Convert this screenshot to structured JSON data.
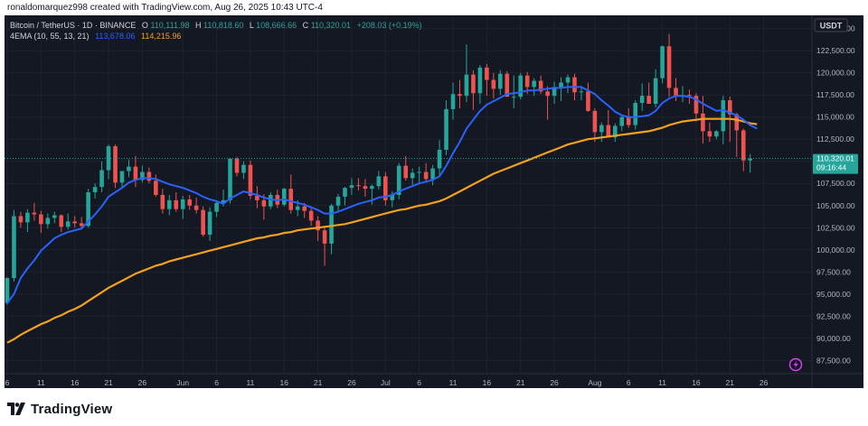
{
  "header": {
    "credit": "ronaldomarquez998 created with TradingView.com, Aug 26, 2025 10:43 UTC-4"
  },
  "legend": {
    "symbol": "Bitcoin / TetherUS · 1D · BINANCE",
    "o_label": "O",
    "o": "110,111.98",
    "h_label": "H",
    "h": "110,818.60",
    "l_label": "L",
    "l": "108,666.66",
    "c_label": "C",
    "c": "110,320.01",
    "change": "+208.03 (+0.19%)",
    "ema_label": "4EMA (10, 55, 13, 21)",
    "ema_fast": "113,678.06",
    "ema_slow": "114,215.96"
  },
  "currency_badge": "USDT",
  "price_badge": {
    "price": "110,320.01",
    "countdown": "09:16:44"
  },
  "footer": {
    "brand": "TradingView"
  },
  "chart_data": {
    "type": "candlestick",
    "ylim": [
      86000,
      126500
    ],
    "y_ticks": [
      87500,
      90000,
      92500,
      95000,
      97500,
      100000,
      102500,
      105000,
      107500,
      110000,
      112500,
      115000,
      117500,
      120000,
      122500,
      125000
    ],
    "y_tick_labels": [
      "87,500.00",
      "90,000.00",
      "92,500.00",
      "95,000.00",
      "97,500.00",
      "100,000.00",
      "102,500.00",
      "105,000.00",
      "107,500.00",
      "110,000.00",
      "112,500.00",
      "115,000.00",
      "117,500.00",
      "120,000.00",
      "122,500.00",
      "125,000.00"
    ],
    "x_labels": [
      {
        "i": 0,
        "label": "6"
      },
      {
        "i": 5,
        "label": "11"
      },
      {
        "i": 10,
        "label": "16"
      },
      {
        "i": 15,
        "label": "21"
      },
      {
        "i": 20,
        "label": "26"
      },
      {
        "i": 26,
        "label": "Jun"
      },
      {
        "i": 31,
        "label": "6"
      },
      {
        "i": 36,
        "label": "11"
      },
      {
        "i": 41,
        "label": "16"
      },
      {
        "i": 46,
        "label": "21"
      },
      {
        "i": 51,
        "label": "26"
      },
      {
        "i": 56,
        "label": "Jul"
      },
      {
        "i": 61,
        "label": "6"
      },
      {
        "i": 66,
        "label": "11"
      },
      {
        "i": 71,
        "label": "16"
      },
      {
        "i": 76,
        "label": "21"
      },
      {
        "i": 81,
        "label": "26"
      },
      {
        "i": 87,
        "label": "Aug"
      },
      {
        "i": 92,
        "label": "6"
      },
      {
        "i": 97,
        "label": "11"
      },
      {
        "i": 102,
        "label": "16"
      },
      {
        "i": 107,
        "label": "21"
      },
      {
        "i": 112,
        "label": "26"
      }
    ],
    "last_price": 110320.01,
    "colors": {
      "up": "#26a69a",
      "down": "#ef5350",
      "ema_fast": "#2962ff",
      "ema_slow": "#f2a11f"
    },
    "series": [
      {
        "name": "BTCUSDT",
        "ohlc": [
          [
            94000,
            96900,
            93800,
            96800
          ],
          [
            96800,
            104500,
            96400,
            103800
          ],
          [
            103800,
            104300,
            102500,
            103100
          ],
          [
            103100,
            104600,
            102000,
            104200
          ],
          [
            104200,
            105300,
            103300,
            104000
          ],
          [
            104000,
            104400,
            101900,
            102900
          ],
          [
            102900,
            104100,
            102400,
            103600
          ],
          [
            103600,
            104300,
            103000,
            103900
          ],
          [
            103900,
            104000,
            102000,
            102600
          ],
          [
            102600,
            104100,
            102300,
            103200
          ],
          [
            103200,
            103800,
            102500,
            103000
          ],
          [
            103000,
            103700,
            102400,
            102700
          ],
          [
            102700,
            106900,
            102500,
            106500
          ],
          [
            106500,
            107500,
            105800,
            107100
          ],
          [
            107100,
            110000,
            106500,
            109000
          ],
          [
            109000,
            111900,
            108000,
            111700
          ],
          [
            111700,
            111900,
            107000,
            107600
          ],
          [
            107600,
            108900,
            107000,
            108900
          ],
          [
            108900,
            110200,
            108200,
            109400
          ],
          [
            109400,
            110600,
            107100,
            107900
          ],
          [
            107900,
            109500,
            107600,
            108800
          ],
          [
            108800,
            109300,
            107500,
            107800
          ],
          [
            107800,
            108500,
            106000,
            106200
          ],
          [
            106200,
            106900,
            104100,
            104600
          ],
          [
            104600,
            106200,
            103900,
            105600
          ],
          [
            105600,
            106500,
            104300,
            104600
          ],
          [
            104600,
            106100,
            103500,
            105700
          ],
          [
            105700,
            106200,
            104500,
            105000
          ],
          [
            105000,
            105900,
            104100,
            104500
          ],
          [
            104500,
            104900,
            101500,
            101700
          ],
          [
            101700,
            104800,
            101000,
            104300
          ],
          [
            104300,
            105500,
            103700,
            105300
          ],
          [
            105300,
            106800,
            104900,
            105600
          ],
          [
            105600,
            110400,
            105200,
            110300
          ],
          [
            110300,
            110500,
            108300,
            108700
          ],
          [
            108700,
            110000,
            108000,
            109600
          ],
          [
            109600,
            110100,
            105700,
            106100
          ],
          [
            106100,
            107200,
            104700,
            105600
          ],
          [
            105600,
            106300,
            103400,
            104900
          ],
          [
            104900,
            106500,
            104600,
            106200
          ],
          [
            106200,
            106800,
            104700,
            105100
          ],
          [
            105100,
            107000,
            104900,
            106900
          ],
          [
            106900,
            108500,
            104100,
            104500
          ],
          [
            104500,
            105600,
            103800,
            104900
          ],
          [
            104900,
            105300,
            103600,
            104400
          ],
          [
            104400,
            104900,
            102700,
            103300
          ],
          [
            103300,
            103800,
            101000,
            102200
          ],
          [
            102200,
            102600,
            98200,
            100700
          ],
          [
            100700,
            105200,
            99500,
            105000
          ],
          [
            105000,
            106300,
            104400,
            106000
          ],
          [
            106000,
            107100,
            105000,
            107000
          ],
          [
            107000,
            108100,
            106200,
            107300
          ],
          [
            107300,
            108100,
            106700,
            107200
          ],
          [
            107200,
            108000,
            106000,
            106900
          ],
          [
            106900,
            107400,
            105100,
            107200
          ],
          [
            107200,
            108900,
            106800,
            108300
          ],
          [
            108300,
            108800,
            105000,
            105600
          ],
          [
            105600,
            106600,
            104800,
            106200
          ],
          [
            106200,
            109800,
            105700,
            109500
          ],
          [
            109500,
            110600,
            107800,
            108100
          ],
          [
            108100,
            109200,
            107300,
            108700
          ],
          [
            108700,
            109400,
            107500,
            108800
          ],
          [
            108800,
            109800,
            107600,
            108000
          ],
          [
            108000,
            109600,
            107300,
            109200
          ],
          [
            109200,
            112400,
            108400,
            111300
          ],
          [
            111300,
            116900,
            110700,
            115900
          ],
          [
            115900,
            118900,
            114700,
            117600
          ],
          [
            117600,
            119200,
            116000,
            117400
          ],
          [
            117400,
            123200,
            116700,
            119800
          ],
          [
            119800,
            120300,
            115800,
            117700
          ],
          [
            117700,
            120900,
            116500,
            120600
          ],
          [
            120600,
            121000,
            117400,
            119200
          ],
          [
            119200,
            120000,
            117100,
            118200
          ],
          [
            118200,
            120300,
            117500,
            119900
          ],
          [
            119900,
            120200,
            117300,
            117300
          ],
          [
            117300,
            119700,
            116000,
            117300
          ],
          [
            117300,
            120000,
            117000,
            119700
          ],
          [
            119700,
            120100,
            117600,
            118400
          ],
          [
            118400,
            119400,
            117400,
            119100
          ],
          [
            119100,
            119700,
            117600,
            117900
          ],
          [
            117900,
            118500,
            114700,
            117400
          ],
          [
            117400,
            119000,
            116500,
            118400
          ],
          [
            118400,
            119500,
            116800,
            118900
          ],
          [
            118900,
            119800,
            117700,
            119500
          ],
          [
            119500,
            119900,
            116900,
            117800
          ],
          [
            117800,
            118400,
            116900,
            117900
          ],
          [
            117900,
            118900,
            115600,
            115700
          ],
          [
            115700,
            116000,
            112200,
            113300
          ],
          [
            113300,
            114400,
            112200,
            114100
          ],
          [
            114100,
            115800,
            112800,
            112700
          ],
          [
            112700,
            114300,
            112200,
            114000
          ],
          [
            114000,
            115100,
            113400,
            115000
          ],
          [
            115000,
            116000,
            113800,
            114100
          ],
          [
            114100,
            116900,
            113600,
            116600
          ],
          [
            116600,
            118800,
            115700,
            117400
          ],
          [
            117400,
            118900,
            116800,
            116500
          ],
          [
            116500,
            120400,
            116100,
            119400
          ],
          [
            119400,
            123100,
            118800,
            123000
          ],
          [
            123000,
            124400,
            117300,
            118300
          ],
          [
            118300,
            119400,
            116800,
            117300
          ],
          [
            117300,
            118500,
            116700,
            117500
          ],
          [
            117500,
            118100,
            116500,
            117400
          ],
          [
            117400,
            117700,
            114500,
            115400
          ],
          [
            115400,
            117400,
            112000,
            113400
          ],
          [
            113400,
            114400,
            112200,
            112800
          ],
          [
            112800,
            113500,
            112500,
            113400
          ],
          [
            113400,
            117400,
            111900,
            116900
          ],
          [
            116900,
            117300,
            112200,
            115300
          ],
          [
            115300,
            115500,
            110500,
            113500
          ],
          [
            113500,
            113700,
            108900,
            110100
          ],
          [
            110100,
            110800,
            108700,
            110300
          ]
        ]
      },
      {
        "name": "EMA 13",
        "values": [
          94000,
          95000,
          96800,
          97900,
          98800,
          99900,
          100600,
          101300,
          101700,
          102000,
          102200,
          102400,
          103200,
          104000,
          104900,
          106000,
          106500,
          107000,
          107600,
          107900,
          108100,
          108100,
          108000,
          107700,
          107400,
          107200,
          107000,
          106700,
          106400,
          106000,
          105700,
          105500,
          105200,
          105800,
          106200,
          106600,
          106400,
          106200,
          105900,
          105700,
          105600,
          105700,
          105500,
          105300,
          105100,
          104800,
          104500,
          104100,
          104100,
          104300,
          104600,
          104900,
          105200,
          105400,
          105600,
          105900,
          106000,
          106200,
          106600,
          106900,
          107200,
          107500,
          107700,
          107900,
          108300,
          109500,
          110900,
          112200,
          113700,
          114700,
          115700,
          116400,
          116800,
          117200,
          117600,
          117700,
          117800,
          118000,
          118000,
          118100,
          118200,
          118300,
          118300,
          118400,
          118400,
          118400,
          118000,
          117600,
          116900,
          116300,
          115600,
          115200,
          115000,
          115000,
          115100,
          115200,
          115700,
          116600,
          117100,
          117400,
          117400,
          117300,
          117000,
          116500,
          116100,
          115700,
          115800,
          115500,
          115200,
          114700,
          114100,
          113700
        ]
      },
      {
        "name": "EMA 55",
        "values": [
          89500,
          89900,
          90400,
          90800,
          91200,
          91600,
          91900,
          92300,
          92600,
          93000,
          93300,
          93700,
          94200,
          94700,
          95200,
          95700,
          96100,
          96500,
          96900,
          97300,
          97600,
          97900,
          98200,
          98400,
          98700,
          98900,
          99100,
          99300,
          99500,
          99700,
          99900,
          100100,
          100300,
          100500,
          100700,
          100900,
          101100,
          101300,
          101400,
          101600,
          101700,
          101900,
          102000,
          102200,
          102300,
          102400,
          102500,
          102600,
          102700,
          102800,
          102900,
          103100,
          103300,
          103500,
          103700,
          103900,
          104100,
          104300,
          104500,
          104600,
          104800,
          105000,
          105100,
          105300,
          105500,
          105800,
          106200,
          106600,
          107000,
          107400,
          107800,
          108200,
          108600,
          108900,
          109200,
          109500,
          109800,
          110100,
          110400,
          110700,
          111000,
          111300,
          111600,
          111900,
          112100,
          112300,
          112500,
          112600,
          112700,
          112800,
          112900,
          113000,
          113100,
          113200,
          113300,
          113400,
          113600,
          113800,
          114100,
          114300,
          114500,
          114600,
          114700,
          114800,
          114800,
          114800,
          114800,
          114800,
          114700,
          114500,
          114300,
          114200
        ]
      }
    ]
  }
}
